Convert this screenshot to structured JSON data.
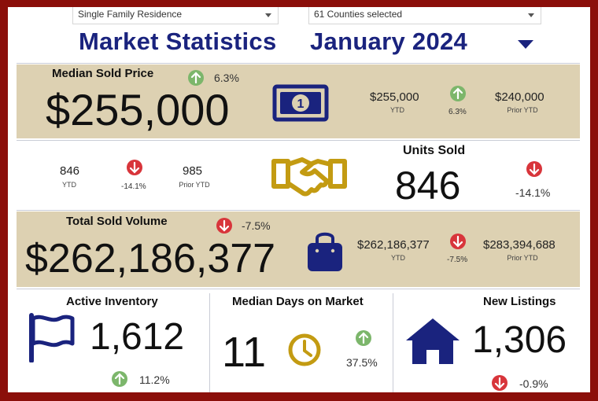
{
  "filters": {
    "property_type": "Single Family Residence",
    "counties": "61 Counties selected"
  },
  "header": {
    "title": "Market Statistics",
    "period": "January 2024"
  },
  "median_sold_price": {
    "label": "Median Sold Price",
    "value": "$255,000",
    "change": "6.3%",
    "ytd_value": "$255,000",
    "ytd_label": "YTD",
    "ytd_change": "6.3%",
    "prior_value": "$240,000",
    "prior_label": "Prior YTD"
  },
  "units_sold": {
    "label": "Units Sold",
    "value": "846",
    "change": "-14.1%",
    "ytd_value": "846",
    "ytd_label": "YTD",
    "ytd_change": "-14.1%",
    "prior_value": "985",
    "prior_label": "Prior YTD"
  },
  "total_sold_volume": {
    "label": "Total Sold Volume",
    "value": "$262,186,377",
    "change": "-7.5%",
    "ytd_value": "$262,186,377",
    "ytd_label": "YTD",
    "ytd_change": "-7.5%",
    "prior_value": "$283,394,688",
    "prior_label": "Prior YTD"
  },
  "active_inventory": {
    "label": "Active Inventory",
    "value": "1,612",
    "change": "11.2%"
  },
  "median_days": {
    "label": "Median Days on Market",
    "value": "11",
    "change": "37.5%"
  },
  "new_listings": {
    "label": "New Listings",
    "value": "1,306",
    "change": "-0.9%"
  },
  "colors": {
    "navy": "#1a237e",
    "tan": "#ddd1b2",
    "gold": "#c39b12",
    "up": "#7cb66b",
    "down": "#d8353b",
    "border": "#8b0f0a"
  },
  "icons": {
    "money": "money-bill-icon",
    "handshake": "handshake-icon",
    "bag": "shopping-bag-icon",
    "flag": "flag-icon",
    "clock": "clock-icon",
    "house": "house-icon",
    "up": "arrow-up-icon",
    "down": "arrow-down-icon"
  }
}
